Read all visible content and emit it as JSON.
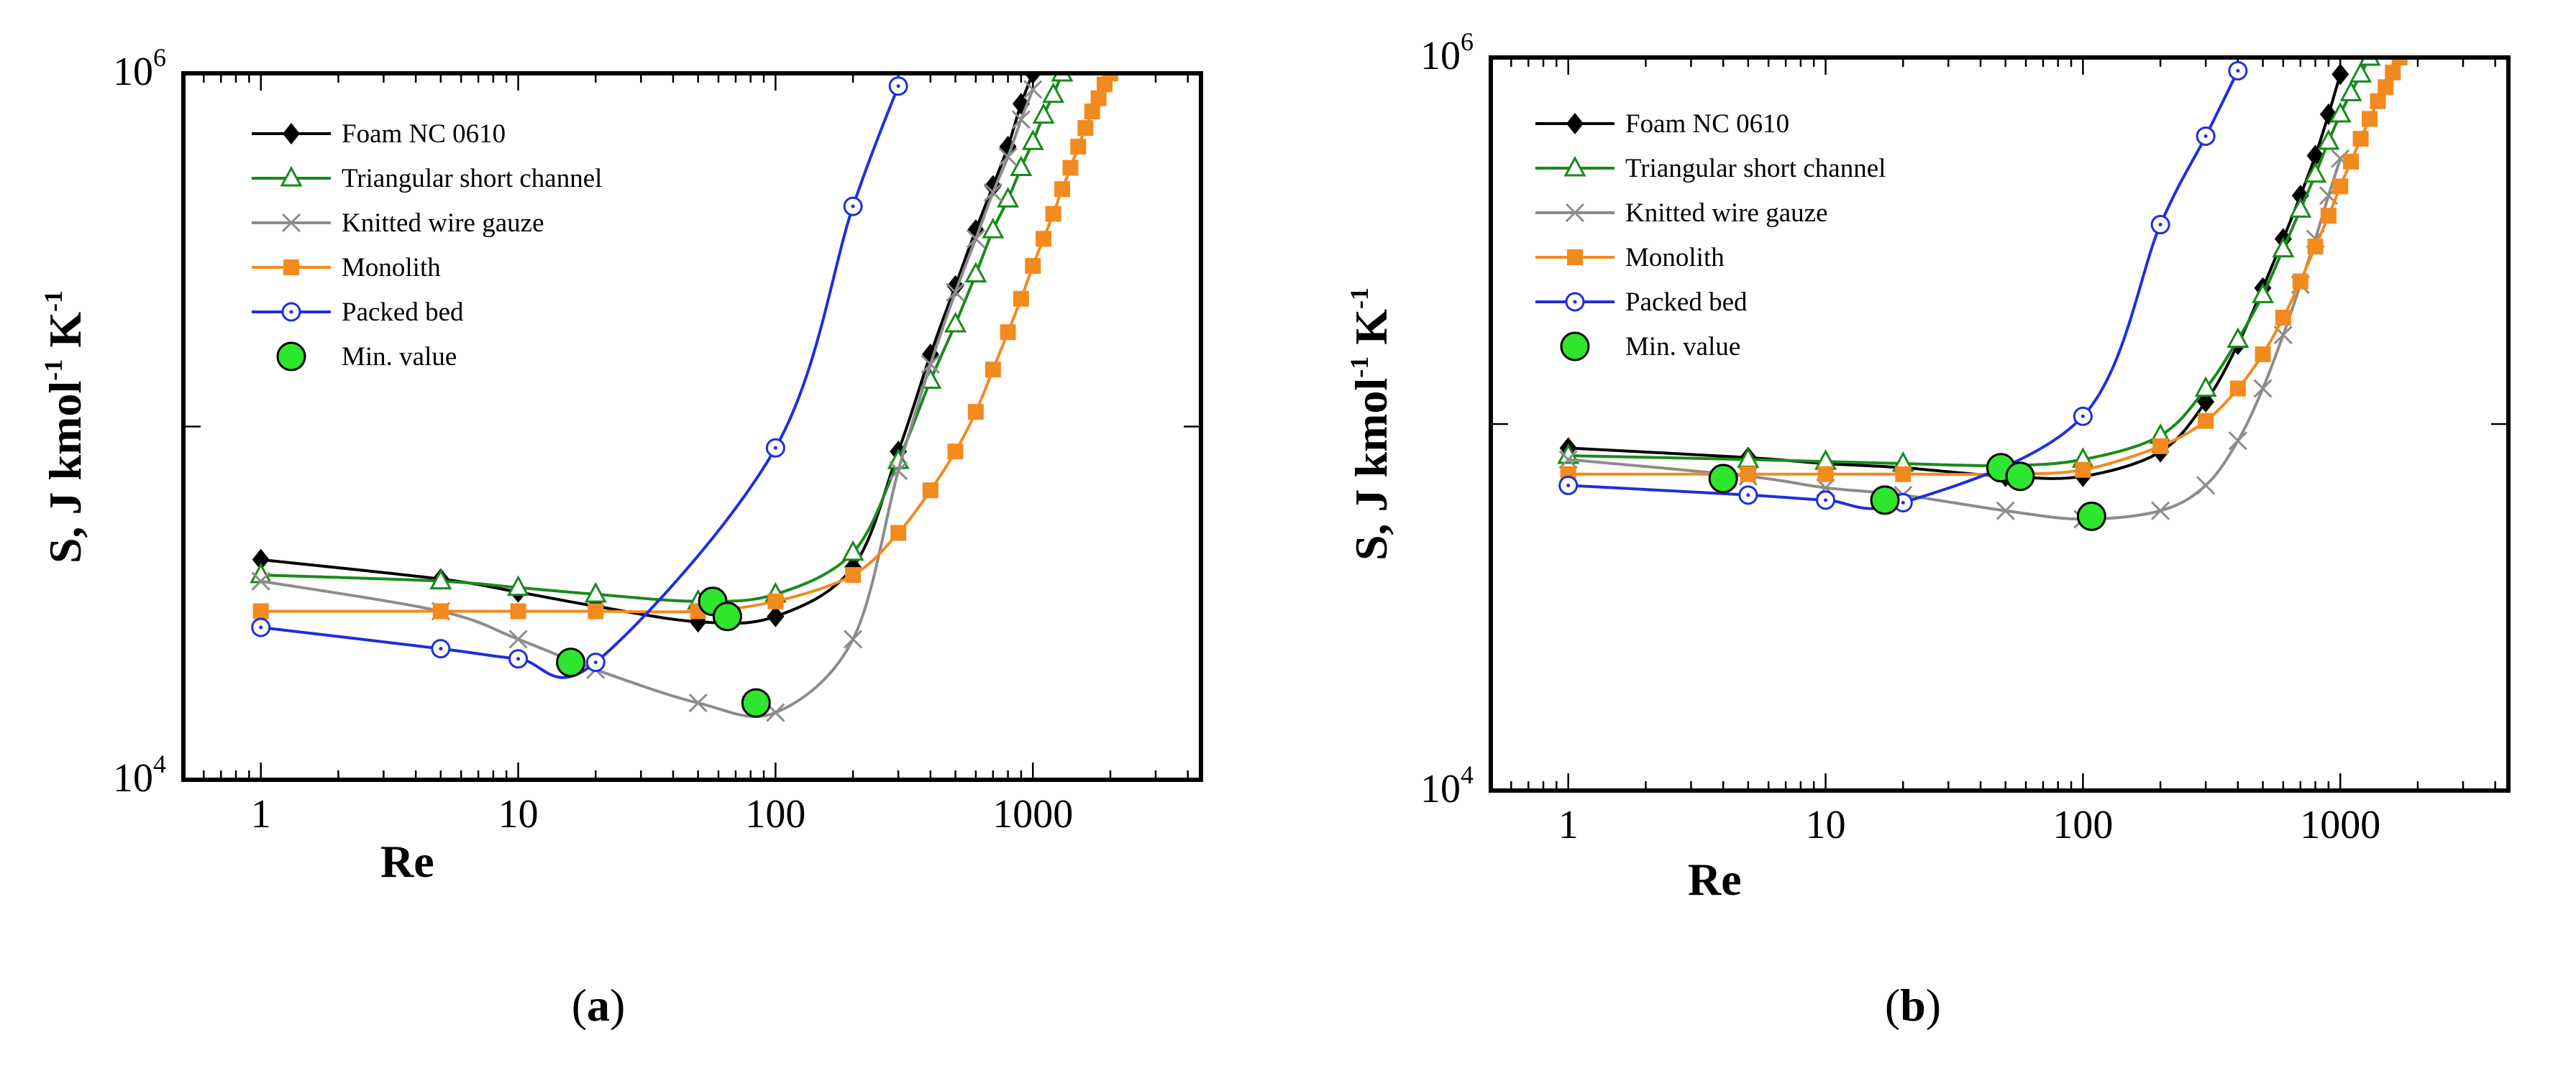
{
  "chart_data": [
    {
      "type": "line",
      "panel_label": "a",
      "xscale": "log",
      "yscale": "log",
      "xlim": [
        0.5,
        4500
      ],
      "ylim": [
        10000,
        1000000
      ],
      "xlabel": "Re",
      "ylabel_parts": {
        "s": "S, J kmol",
        "sup1": "-1",
        "k": " K",
        "sup2": "-1"
      },
      "xticks": [
        1,
        10,
        100,
        1000
      ],
      "xtick_labels": [
        "1",
        "10",
        "100",
        "1000"
      ],
      "ytick_labels": [
        {
          "base": "10",
          "exp": "4",
          "value": 10000
        },
        {
          "base": "10",
          "exp": "6",
          "value": 1000000
        }
      ],
      "legend_position": "top-left",
      "series": [
        {
          "name": "Foam NC 0610",
          "color": "#000000",
          "marker": "diamond",
          "x": [
            1,
            5,
            10,
            20,
            50,
            100,
            200,
            300,
            400,
            500,
            600,
            700,
            800,
            900,
            1000
          ],
          "y": [
            42000,
            37000,
            34000,
            31000,
            28000,
            29000,
            40000,
            85000,
            160000,
            250000,
            360000,
            480000,
            620000,
            820000,
            1000000
          ]
        },
        {
          "name": "Triangular short channel",
          "color": "#1a8a1a",
          "marker": "triangle-open",
          "x": [
            1,
            5,
            10,
            20,
            50,
            100,
            200,
            300,
            400,
            500,
            600,
            700,
            800,
            900,
            1000,
            1100,
            1200,
            1300
          ],
          "y": [
            38000,
            36500,
            35000,
            33500,
            32000,
            33500,
            44000,
            80000,
            135000,
            195000,
            270000,
            360000,
            440000,
            540000,
            640000,
            760000,
            870000,
            1000000
          ]
        },
        {
          "name": "Knitted wire gauze",
          "color": "#8c8c8c",
          "marker": "x",
          "x": [
            1,
            5,
            10,
            20,
            50,
            100,
            200,
            300,
            400,
            500,
            600,
            700,
            800,
            900,
            1000
          ],
          "y": [
            36500,
            30000,
            25000,
            20500,
            16500,
            15500,
            25000,
            75000,
            150000,
            240000,
            340000,
            460000,
            580000,
            740000,
            900000
          ]
        },
        {
          "name": "Monolith",
          "color": "#f28a1e",
          "marker": "square",
          "x": [
            1,
            5,
            10,
            20,
            50,
            100,
            200,
            300,
            400,
            500,
            600,
            700,
            800,
            900,
            1000,
            1100,
            1200,
            1300,
            1400,
            1500,
            1600,
            1700,
            1800,
            1900,
            2000
          ],
          "y": [
            30000,
            30000,
            30000,
            30000,
            30000,
            32000,
            38000,
            50000,
            66000,
            85000,
            110000,
            145000,
            185000,
            230000,
            285000,
            340000,
            400000,
            470000,
            540000,
            620000,
            700000,
            780000,
            850000,
            930000,
            1000000
          ]
        },
        {
          "name": "Packed bed",
          "color": "#1f2fdb",
          "marker": "circle-open",
          "x": [
            1,
            5,
            10,
            20,
            100,
            200,
            300
          ],
          "y": [
            27000,
            23500,
            22000,
            21500,
            87000,
            420000,
            920000
          ]
        },
        {
          "name": "Min. value",
          "color": "#2ee62e",
          "marker": "circle-large",
          "x": [
            16,
            57,
            65,
            84
          ],
          "y": [
            21500,
            32000,
            29000,
            16500
          ]
        }
      ]
    },
    {
      "type": "line",
      "panel_label": "b",
      "xscale": "log",
      "yscale": "log",
      "xlim": [
        0.5,
        4500
      ],
      "ylim": [
        10000,
        1000000
      ],
      "xlabel": "Re",
      "ylabel_parts": {
        "s": "S, J kmol",
        "sup1": "-1",
        "k": " K",
        "sup2": "-1"
      },
      "xticks": [
        1,
        10,
        100,
        1000
      ],
      "xtick_labels": [
        "1",
        "10",
        "100",
        "1000"
      ],
      "ytick_labels": [
        {
          "base": "10",
          "exp": "4",
          "value": 10000
        },
        {
          "base": "10",
          "exp": "6",
          "value": 1000000
        }
      ],
      "legend_position": "top-left",
      "series": [
        {
          "name": "Foam NC 0610",
          "color": "#000000",
          "marker": "diamond",
          "x": [
            1,
            5,
            10,
            20,
            50,
            100,
            200,
            300,
            400,
            500,
            600,
            700,
            800,
            900,
            1000
          ],
          "y": [
            86000,
            81000,
            78000,
            76000,
            72000,
            72000,
            84000,
            115000,
            165000,
            235000,
            320000,
            420000,
            540000,
            700000,
            900000
          ]
        },
        {
          "name": "Triangular short channel",
          "color": "#1a8a1a",
          "marker": "triangle-open",
          "x": [
            1,
            5,
            10,
            20,
            50,
            100,
            200,
            300,
            400,
            500,
            600,
            700,
            800,
            900,
            1000,
            1100,
            1200,
            1300
          ],
          "y": [
            82000,
            80000,
            79000,
            78000,
            77000,
            80000,
            93000,
            125000,
            170000,
            225000,
            300000,
            385000,
            480000,
            590000,
            700000,
            800000,
            900000,
            1000000
          ]
        },
        {
          "name": "Knitted wire gauze",
          "color": "#8c8c8c",
          "marker": "x",
          "x": [
            1,
            5,
            10,
            20,
            50,
            100,
            200,
            300,
            400,
            500,
            600,
            700,
            800,
            900,
            1000
          ],
          "y": [
            80000,
            72000,
            67000,
            64000,
            58000,
            55000,
            58000,
            68000,
            90000,
            125000,
            175000,
            240000,
            320000,
            420000,
            530000
          ]
        },
        {
          "name": "Monolith",
          "color": "#f28a1e",
          "marker": "square",
          "x": [
            1,
            5,
            10,
            20,
            50,
            100,
            200,
            300,
            400,
            500,
            600,
            700,
            800,
            900,
            1000,
            1100,
            1200,
            1300,
            1400,
            1500,
            1600,
            1700
          ],
          "y": [
            73000,
            73000,
            73000,
            73000,
            73000,
            75000,
            87000,
            102000,
            125000,
            155000,
            195000,
            245000,
            305000,
            370000,
            445000,
            520000,
            600000,
            680000,
            760000,
            830000,
            910000,
            1000000
          ]
        },
        {
          "name": "Packed bed",
          "color": "#1f2fdb",
          "marker": "circle-open",
          "x": [
            1,
            5,
            10,
            20,
            100,
            200,
            300,
            400
          ],
          "y": [
            68000,
            64000,
            62000,
            61000,
            105000,
            350000,
            610000,
            920000
          ]
        },
        {
          "name": "Min. value",
          "color": "#2ee62e",
          "marker": "circle-large",
          "x": [
            4,
            17,
            48,
            57,
            108
          ],
          "y": [
            71000,
            62000,
            76000,
            72000,
            56000
          ]
        }
      ]
    }
  ]
}
